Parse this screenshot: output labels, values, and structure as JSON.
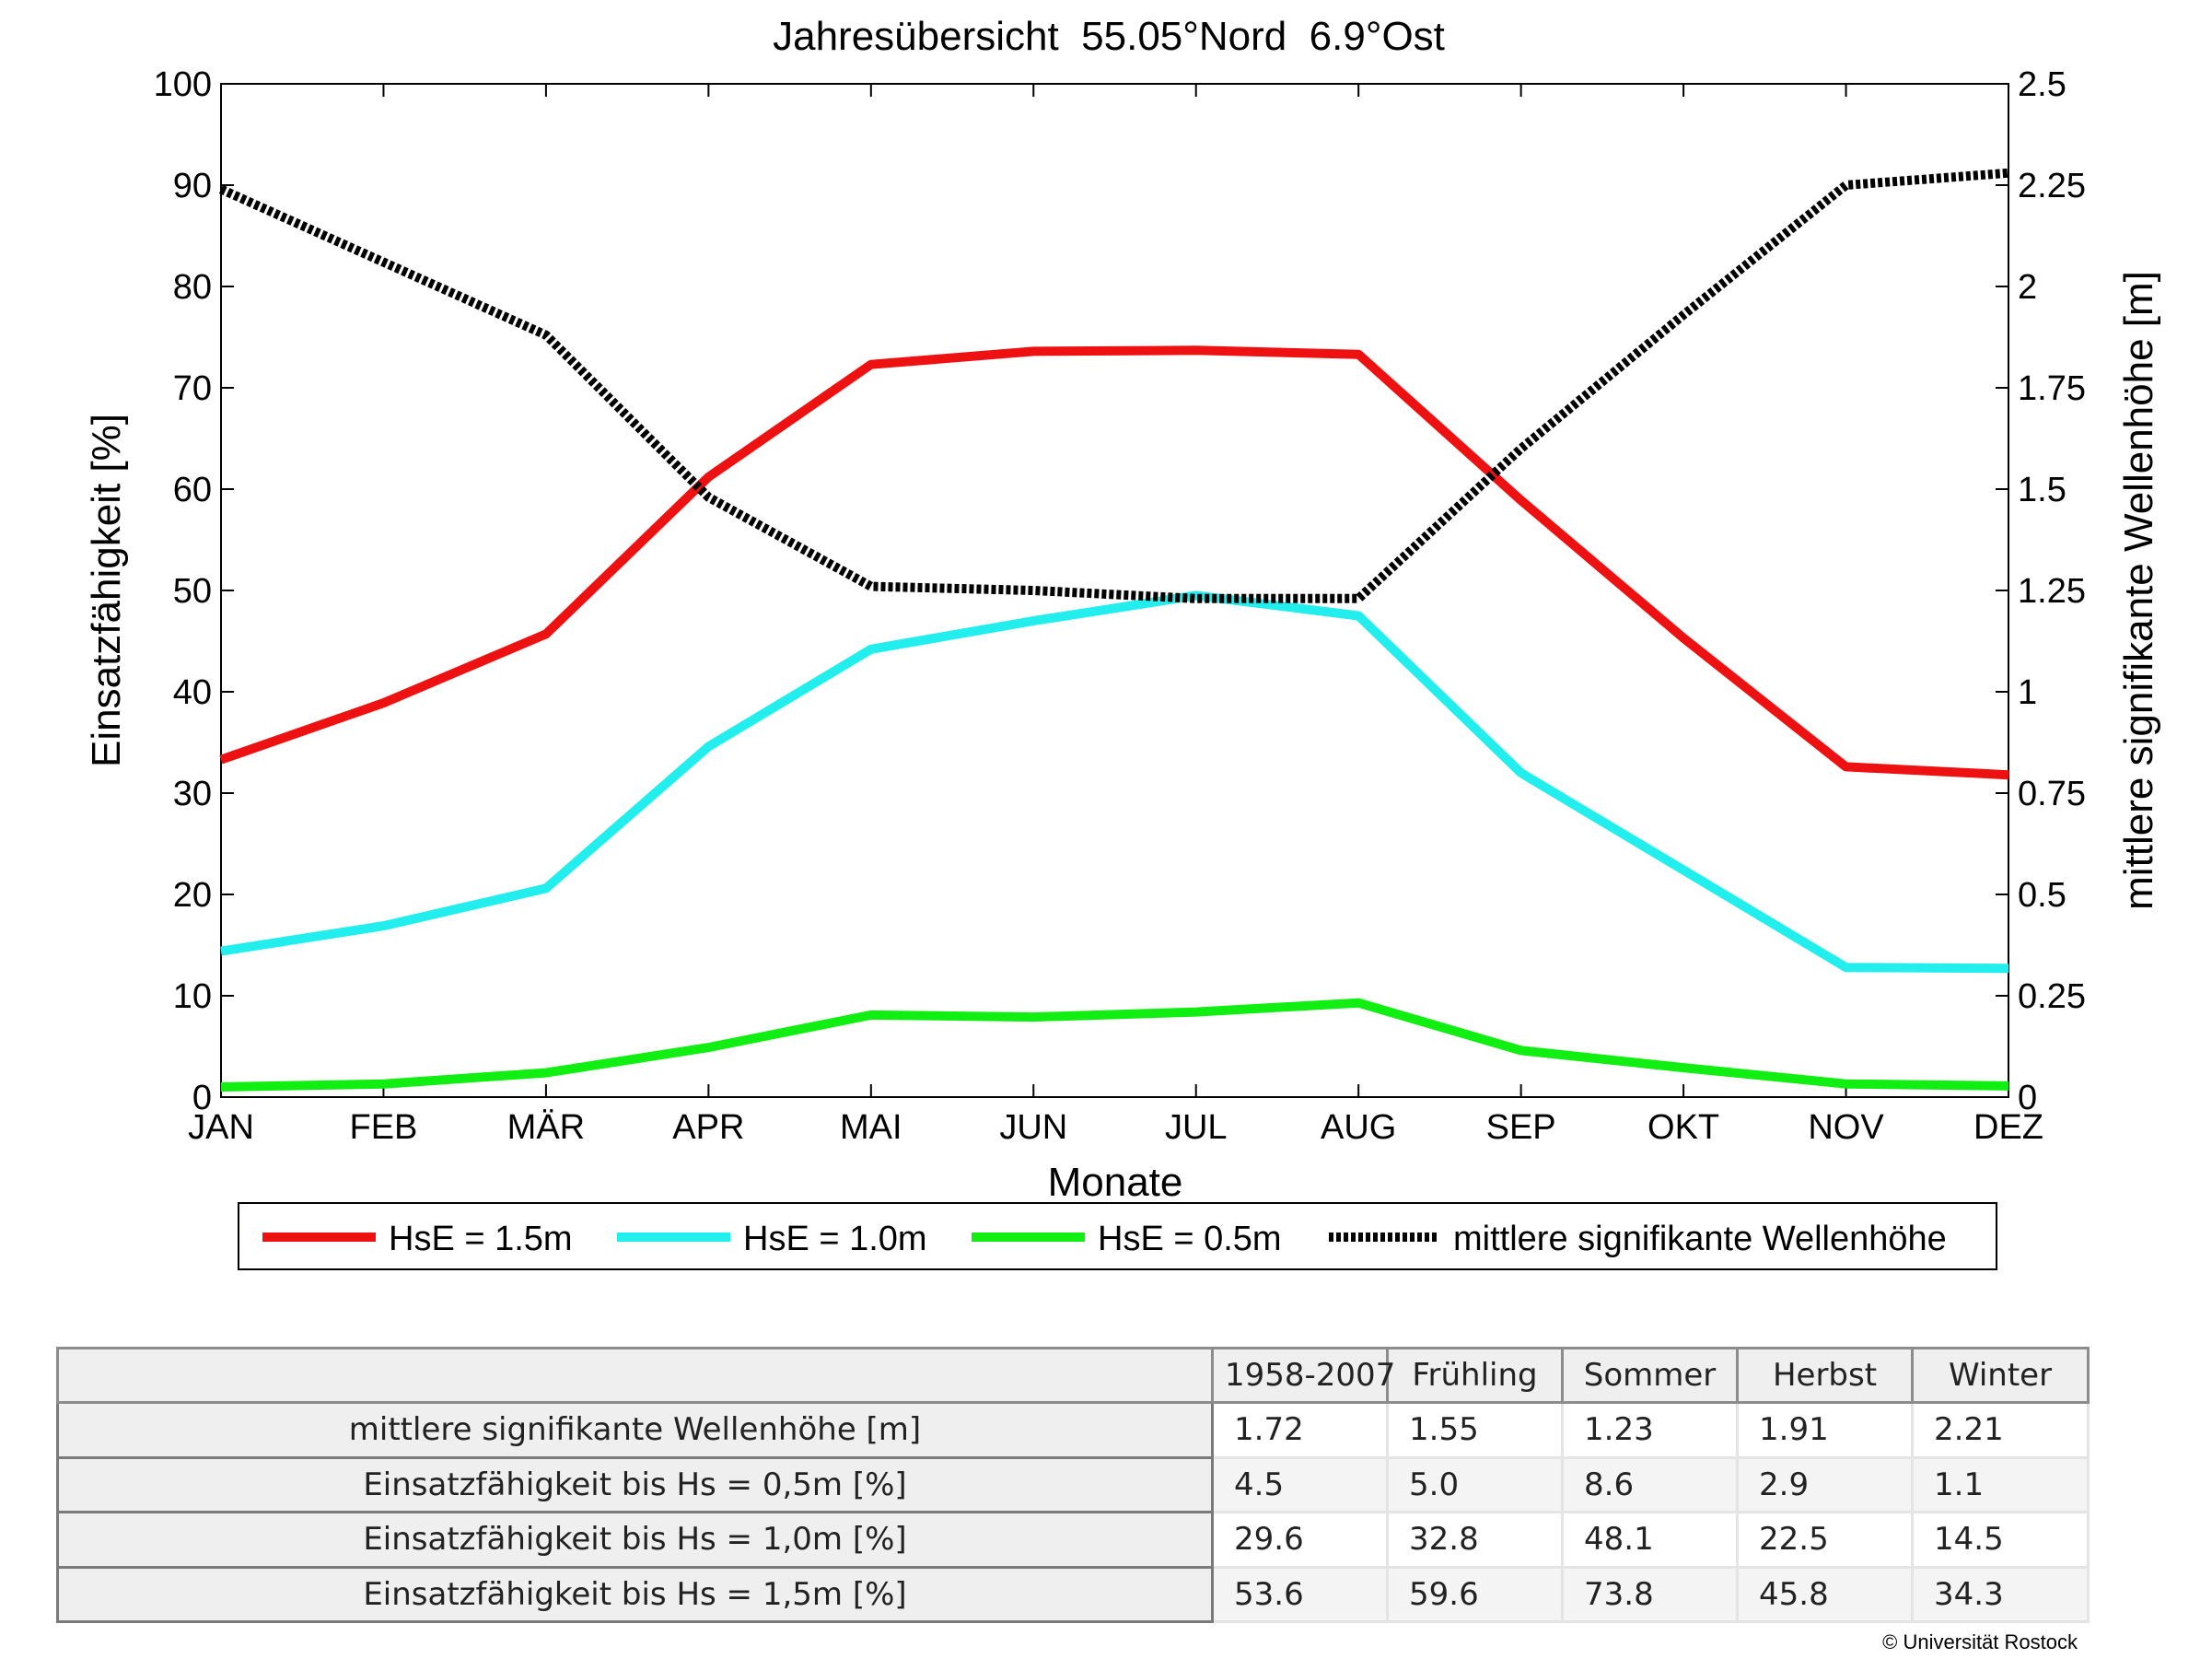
{
  "chart_data": {
    "type": "line",
    "title": "Jahresübersicht  55.05°Nord  6.9°Ost",
    "xlabel": "Monate",
    "ylabel_left": "Einsatzfähigkeit [%]",
    "ylabel_right": "mittlere signifikante Wellenhöhe [m]",
    "categories": [
      "JAN",
      "FEB",
      "MÄR",
      "APR",
      "MAI",
      "JUN",
      "JUL",
      "AUG",
      "SEP",
      "OKT",
      "NOV",
      "DEZ"
    ],
    "ylim_left": [
      0,
      100
    ],
    "ylim_right": [
      0,
      2.5
    ],
    "yticks_left": [
      "0",
      "10",
      "20",
      "30",
      "40",
      "50",
      "60",
      "70",
      "80",
      "90",
      "100"
    ],
    "yticks_right": [
      "0",
      "0.25",
      "0.5",
      "0.75",
      "1",
      "1.25",
      "1.5",
      "1.75",
      "2",
      "2.25",
      "2.5"
    ],
    "grid": false,
    "legend_position": "below",
    "series": [
      {
        "name": "HsE = 1.5m",
        "axis": "left",
        "color": "#ee1111",
        "style": "solid",
        "values": [
          33.3,
          38.9,
          45.7,
          61.2,
          72.3,
          73.6,
          73.7,
          73.3,
          58.9,
          45.3,
          32.6,
          31.8
        ]
      },
      {
        "name": "HsE = 1.0m",
        "axis": "left",
        "color": "#22eeee",
        "style": "solid",
        "values": [
          14.4,
          16.9,
          20.6,
          34.6,
          44.2,
          47.0,
          49.5,
          47.5,
          32.0,
          22.4,
          12.8,
          12.7
        ]
      },
      {
        "name": "HsE = 0.5m",
        "axis": "left",
        "color": "#11ee11",
        "style": "solid",
        "values": [
          1.0,
          1.3,
          2.4,
          4.9,
          8.1,
          7.9,
          8.4,
          9.3,
          4.6,
          2.9,
          1.3,
          1.1
        ]
      },
      {
        "name": "mittlere signifikante Wellenhöhe",
        "axis": "right",
        "color": "#000000",
        "style": "dotted",
        "values": [
          2.24,
          2.06,
          1.88,
          1.48,
          1.26,
          1.25,
          1.23,
          1.23,
          1.6,
          1.93,
          2.25,
          2.28
        ]
      }
    ]
  },
  "table": {
    "headers": [
      "1958-2007",
      "Frühling",
      "Sommer",
      "Herbst",
      "Winter"
    ],
    "rows": [
      {
        "label": "mittlere signifikante Wellenhöhe [m]",
        "values": [
          "1.72",
          "1.55",
          "1.23",
          "1.91",
          "2.21"
        ]
      },
      {
        "label": "Einsatzfähigkeit bis Hs = 0,5m [%]",
        "values": [
          "4.5",
          "5.0",
          "8.6",
          "2.9",
          "1.1"
        ]
      },
      {
        "label": "Einsatzfähigkeit bis Hs = 1,0m [%]",
        "values": [
          "29.6",
          "32.8",
          "48.1",
          "22.5",
          "14.5"
        ]
      },
      {
        "label": "Einsatzfähigkeit bis Hs = 1,5m [%]",
        "values": [
          "53.6",
          "59.6",
          "73.8",
          "45.8",
          "34.3"
        ]
      }
    ]
  },
  "copyright": "© Universität Rostock"
}
